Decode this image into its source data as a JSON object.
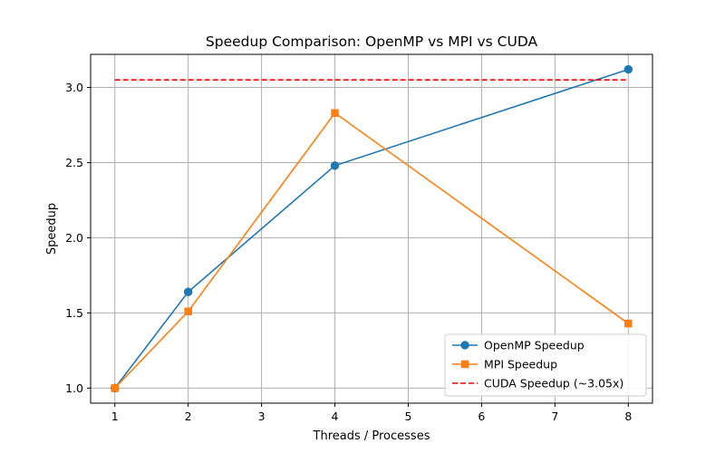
{
  "chart_data": {
    "type": "line",
    "title": "Speedup Comparison: OpenMP vs MPI vs CUDA",
    "xlabel": "Threads / Processes",
    "ylabel": "Speedup",
    "xlim": [
      0.67,
      8.33
    ],
    "ylim": [
      0.9,
      3.22
    ],
    "x_ticks": [
      1,
      2,
      3,
      4,
      5,
      6,
      7,
      8
    ],
    "y_ticks": [
      1.0,
      1.5,
      2.0,
      2.5,
      3.0
    ],
    "y_tick_labels": [
      "1.0",
      "1.5",
      "2.0",
      "2.5",
      "3.0"
    ],
    "grid": true,
    "legend_position": "lower-right",
    "series": [
      {
        "name": "OpenMP Speedup",
        "x": [
          1,
          2,
          4,
          8
        ],
        "values": [
          1.0,
          1.64,
          2.48,
          3.12
        ],
        "color": "#1f77b4",
        "marker": "circle",
        "line_style": "solid"
      },
      {
        "name": "MPI Speedup",
        "x": [
          1,
          2,
          4,
          8
        ],
        "values": [
          1.0,
          1.51,
          2.83,
          1.43
        ],
        "color": "#ff7f0e",
        "marker": "square",
        "line_style": "solid"
      },
      {
        "name": "CUDA Speedup (~3.05x)",
        "x": [
          1,
          8
        ],
        "values": [
          3.05,
          3.05
        ],
        "color": "#ff0000",
        "marker": "none",
        "line_style": "dashed"
      }
    ]
  }
}
